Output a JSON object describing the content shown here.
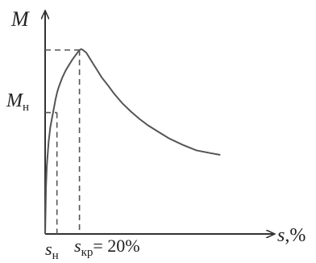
{
  "chart_data": {
    "type": "line",
    "title": "",
    "ylabel": {
      "main": "M",
      "sub": ""
    },
    "xlabel": {
      "main": "s",
      "unit": ",%"
    },
    "y_marker": {
      "main": "M",
      "sub": "н"
    },
    "x_markers": [
      {
        "main": "s",
        "sub": "н",
        "suffix": ""
      },
      {
        "main": "s",
        "sub": "кр",
        "suffix": "= 20%"
      }
    ],
    "series": [
      {
        "x": [
          0,
          0.5,
          1,
          2,
          3,
          4,
          5,
          6,
          7,
          8,
          10,
          12,
          14,
          16,
          18,
          20,
          21,
          22,
          24,
          26,
          28,
          30,
          33,
          36,
          40,
          45,
          50,
          55,
          60,
          66,
          72,
          80,
          88,
          96,
          102
        ],
        "y": [
          0,
          0.26,
          0.37,
          0.5,
          0.58,
          0.63,
          0.68,
          0.73,
          0.77,
          0.8,
          0.85,
          0.89,
          0.92,
          0.95,
          0.975,
          1.0,
          1.005,
          1.0,
          0.985,
          0.955,
          0.925,
          0.895,
          0.85,
          0.815,
          0.765,
          0.71,
          0.665,
          0.625,
          0.59,
          0.555,
          0.52,
          0.485,
          0.455,
          0.44,
          0.43
        ]
      }
    ],
    "markers": {
      "s_n": 5,
      "s_kr": 20,
      "M_n": 0.66,
      "M_max": 1.0
    },
    "colors": {
      "curve": "#555555",
      "axes": "#333333",
      "dash": "#555555"
    }
  }
}
